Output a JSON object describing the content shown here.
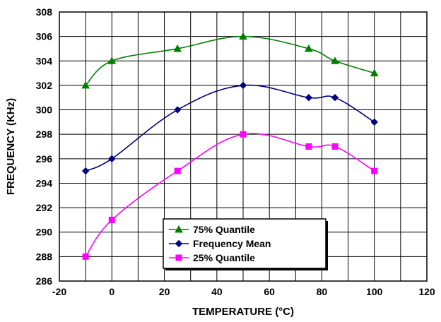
{
  "chart_data": {
    "type": "line",
    "title": "",
    "xlabel": "TEMPERATURE (°C)",
    "ylabel": "FREQUENCY (KHz)",
    "xlim": [
      -20,
      120
    ],
    "ylim": [
      286,
      308
    ],
    "xticks": [
      "-20",
      "0",
      "20",
      "40",
      "60",
      "80",
      "100",
      "120"
    ],
    "yticks": [
      "286",
      "288",
      "290",
      "292",
      "294",
      "296",
      "298",
      "300",
      "302",
      "304",
      "306",
      "308"
    ],
    "grid": true,
    "legend_position": "bottom-center",
    "series": [
      {
        "name": "75% Quantile",
        "color": "#008000",
        "marker": "triangle",
        "x": [
          -10,
          0,
          25,
          50,
          75,
          85,
          100
        ],
        "y": [
          302,
          304,
          305,
          306,
          305,
          304,
          303
        ]
      },
      {
        "name": "Frequency Mean",
        "color": "#000080",
        "marker": "diamond",
        "x": [
          -10,
          0,
          25,
          50,
          75,
          85,
          100
        ],
        "y": [
          295,
          296,
          300,
          302,
          301,
          301,
          299
        ]
      },
      {
        "name": "25% Quantile",
        "color": "#FF00FF",
        "marker": "square",
        "x": [
          -10,
          0,
          25,
          50,
          75,
          85,
          100
        ],
        "y": [
          288,
          291,
          295,
          298,
          297,
          297,
          295
        ]
      }
    ]
  }
}
